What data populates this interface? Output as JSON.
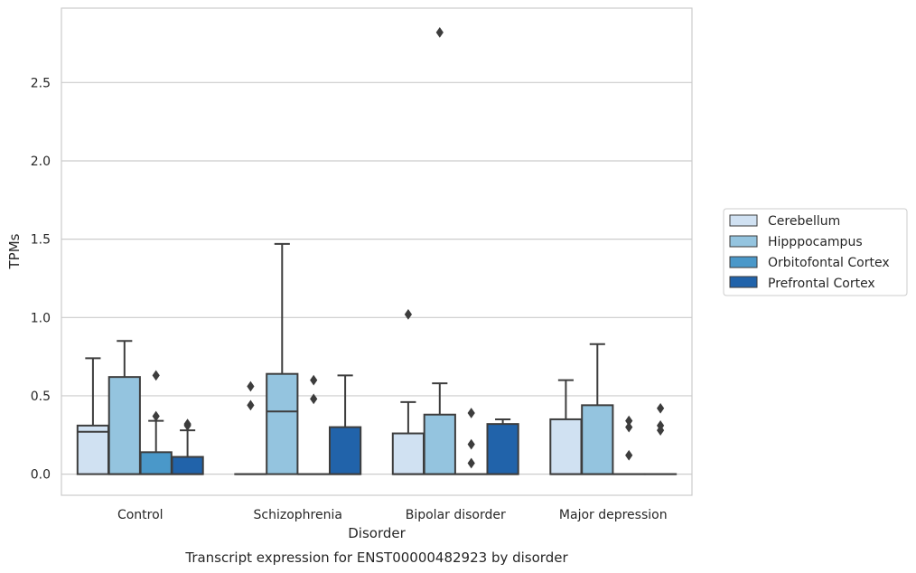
{
  "chart_data": {
    "type": "box",
    "caption": "Transcript expression for ENST00000482923 by disorder",
    "xlabel": "Disorder",
    "ylabel": "TPMs",
    "ylim": [
      -0.135,
      2.975
    ],
    "yticks": [
      0.0,
      0.5,
      1.0,
      1.5,
      2.0,
      2.5
    ],
    "ytick_labels": [
      "0.0",
      "0.5",
      "1.0",
      "1.5",
      "2.0",
      "2.5"
    ],
    "categories": [
      "Control",
      "Schizophrenia",
      "Bipolar disorder",
      "Major depression"
    ],
    "grid": "horizontal",
    "legend_position": "right",
    "series": [
      {
        "name": "Cerebellum",
        "color": "#d0e1f2",
        "boxes": [
          {
            "category": "Control",
            "q1": 0.0,
            "median": 0.27,
            "q3": 0.31,
            "whisker_low": 0.0,
            "whisker_high": 0.74,
            "outliers": []
          },
          {
            "category": "Schizophrenia",
            "q1": 0.0,
            "median": 0.0,
            "q3": 0.0,
            "whisker_low": 0.0,
            "whisker_high": 0.0,
            "outliers": [
              0.56,
              0.44
            ]
          },
          {
            "category": "Bipolar disorder",
            "q1": 0.0,
            "median": 0.0,
            "q3": 0.26,
            "whisker_low": 0.0,
            "whisker_high": 0.46,
            "outliers": [
              1.02
            ]
          },
          {
            "category": "Major depression",
            "q1": 0.0,
            "median": 0.0,
            "q3": 0.35,
            "whisker_low": 0.0,
            "whisker_high": 0.6,
            "outliers": []
          }
        ]
      },
      {
        "name": "Hipppocampus",
        "color": "#94c4df",
        "boxes": [
          {
            "category": "Control",
            "q1": 0.0,
            "median": 0.0,
            "q3": 0.62,
            "whisker_low": 0.0,
            "whisker_high": 0.85,
            "outliers": []
          },
          {
            "category": "Schizophrenia",
            "q1": 0.0,
            "median": 0.4,
            "q3": 0.64,
            "whisker_low": 0.0,
            "whisker_high": 1.47,
            "outliers": []
          },
          {
            "category": "Bipolar disorder",
            "q1": 0.0,
            "median": 0.0,
            "q3": 0.38,
            "whisker_low": 0.0,
            "whisker_high": 0.58,
            "outliers": [
              2.82
            ]
          },
          {
            "category": "Major depression",
            "q1": 0.0,
            "median": 0.0,
            "q3": 0.44,
            "whisker_low": 0.0,
            "whisker_high": 0.83,
            "outliers": []
          }
        ]
      },
      {
        "name": "Orbitofontal Cortex",
        "color": "#4a98c9",
        "boxes": [
          {
            "category": "Control",
            "q1": 0.0,
            "median": 0.0,
            "q3": 0.14,
            "whisker_low": 0.0,
            "whisker_high": 0.34,
            "outliers": [
              0.63,
              0.37
            ]
          },
          {
            "category": "Schizophrenia",
            "q1": 0.0,
            "median": 0.0,
            "q3": 0.0,
            "whisker_low": 0.0,
            "whisker_high": 0.0,
            "outliers": [
              0.6,
              0.48
            ]
          },
          {
            "category": "Bipolar disorder",
            "q1": 0.0,
            "median": 0.0,
            "q3": 0.0,
            "whisker_low": 0.0,
            "whisker_high": 0.0,
            "outliers": [
              0.39,
              0.19,
              0.07
            ]
          },
          {
            "category": "Major depression",
            "q1": 0.0,
            "median": 0.0,
            "q3": 0.0,
            "whisker_low": 0.0,
            "whisker_high": 0.0,
            "outliers": [
              0.34,
              0.3,
              0.12
            ]
          }
        ]
      },
      {
        "name": "Prefrontal Cortex",
        "color": "#2163aa",
        "boxes": [
          {
            "category": "Control",
            "q1": 0.0,
            "median": 0.0,
            "q3": 0.11,
            "whisker_low": 0.0,
            "whisker_high": 0.28,
            "outliers": [
              0.32,
              0.31
            ]
          },
          {
            "category": "Schizophrenia",
            "q1": 0.0,
            "median": 0.0,
            "q3": 0.3,
            "whisker_low": 0.0,
            "whisker_high": 0.63,
            "outliers": []
          },
          {
            "category": "Bipolar disorder",
            "q1": 0.0,
            "median": 0.0,
            "q3": 0.32,
            "whisker_low": 0.0,
            "whisker_high": 0.35,
            "outliers": []
          },
          {
            "category": "Major depression",
            "q1": 0.0,
            "median": 0.0,
            "q3": 0.0,
            "whisker_low": 0.0,
            "whisker_high": 0.0,
            "outliers": [
              0.42,
              0.31,
              0.28
            ]
          }
        ]
      }
    ]
  }
}
